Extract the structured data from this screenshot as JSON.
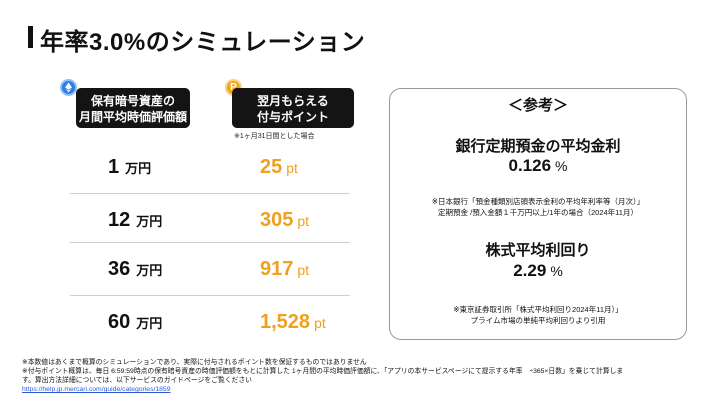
{
  "title": "年率3.0%のシミュレーション",
  "table": {
    "left_header_line1": "保有暗号資産の",
    "left_header_line2": "月間平均時価評価額",
    "right_header_line1": "翌月もらえる",
    "right_header_line2": "付与ポイント",
    "left_coin_icon": "ethereum-coin-icon",
    "right_coin_icon": "point-coin-icon",
    "right_coin_glyph": "P",
    "note": "※1ヶ月31日間とした場合",
    "man_unit": "万円",
    "pt_unit": "pt",
    "rows": [
      {
        "amount": "1",
        "points": "25"
      },
      {
        "amount": "12",
        "points": "305"
      },
      {
        "amount": "36",
        "points": "917"
      },
      {
        "amount": "60",
        "points": "1,528"
      }
    ],
    "accent_color": "#f0a01c"
  },
  "reference": {
    "title": "＜参考＞",
    "deposit_heading": "銀行定期預金の平均金利",
    "deposit_value": "0.126",
    "deposit_unit": "%",
    "deposit_note_line1": "※日本銀行「預金種類別店頭表示金利の平均年利率等（月次）」",
    "deposit_note_line2": "定期預金 /預入金額１千万円以上/1年の場合（2024年11月）",
    "stock_heading": "株式平均利回り",
    "stock_value": "2.29",
    "stock_unit": "%",
    "stock_note_line1": "※東京証券取引所「株式平均利回り2024年11月）」",
    "stock_note_line2": "プライム市場の単純平均利回りより引用"
  },
  "footnotes": {
    "line1": "※本数値はあくまで概算のシミュレーションであり、実際に付与されるポイント数を保証するものではありません",
    "line2": "※付与ポイント概算は、毎日 6:59:59時点の保有暗号資産の時価評価額をもとに計算した 1ヶ月間の平均時価評価額に、「アプリの本サービスページにて提示する年率　÷365×日数」を乗じて計算しま",
    "line3": "す。算出方法詳細については、以下サービスのガイドページをご覧ください",
    "link": "https://help.jp.mercari.com/guide/categories/1859"
  }
}
